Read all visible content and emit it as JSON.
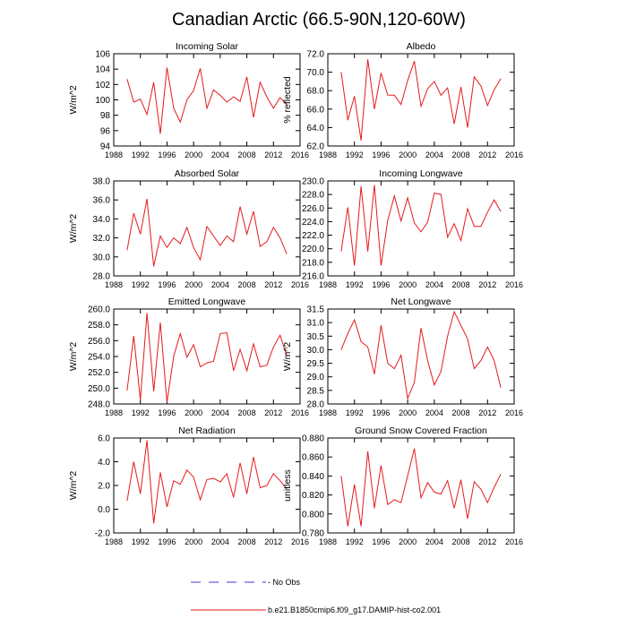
{
  "title": "Canadian Arctic (66.5-90N,120-60W)",
  "colors": {
    "model": "#e41a1c",
    "obs": "#3b3bd6",
    "axis": "#000000"
  },
  "legend": [
    {
      "label": "- No Obs",
      "style": "dashed",
      "color": "#3b3bd6"
    },
    {
      "label": "b.e21.B1850cmip6.f09_g17.DAMIP-hist-co2.001",
      "style": "solid",
      "color": "#e41a1c"
    }
  ],
  "chart_data": [
    {
      "type": "line",
      "title": "Incoming Solar",
      "ylabel": "W/m^2",
      "xlim": [
        1988,
        2016
      ],
      "xticks": [
        "1988",
        "1992",
        "1996",
        "2000",
        "2004",
        "2008",
        "2012",
        "2016"
      ],
      "ylim": [
        94,
        106
      ],
      "yticks": [
        "94",
        "96",
        "98",
        "100",
        "102",
        "104",
        "106"
      ],
      "series": [
        {
          "values": [
            [
              1990,
              102.7
            ],
            [
              1991,
              99.7
            ],
            [
              1992,
              100.1
            ],
            [
              1993,
              98.1
            ],
            [
              1994,
              102.3
            ],
            [
              1995,
              95.6
            ],
            [
              1996,
              104.2
            ],
            [
              1997,
              98.9
            ],
            [
              1998,
              97.1
            ],
            [
              1999,
              100.0
            ],
            [
              2000,
              101.2
            ],
            [
              2001,
              104.1
            ],
            [
              2002,
              98.9
            ],
            [
              2003,
              101.3
            ],
            [
              2004,
              100.6
            ],
            [
              2005,
              99.7
            ],
            [
              2006,
              100.4
            ],
            [
              2007,
              99.8
            ],
            [
              2008,
              103.0
            ],
            [
              2009,
              97.7
            ],
            [
              2010,
              102.3
            ],
            [
              2011,
              100.4
            ],
            [
              2012,
              98.9
            ],
            [
              2013,
              100.3
            ],
            [
              2014,
              99.4
            ]
          ]
        }
      ]
    },
    {
      "type": "line",
      "title": "Albedo",
      "ylabel": "% reflected",
      "xlim": [
        1988,
        2016
      ],
      "xticks": [
        "1988",
        "1992",
        "1996",
        "2000",
        "2004",
        "2008",
        "2012",
        "2016"
      ],
      "ylim": [
        62,
        72
      ],
      "yticks": [
        "62.0",
        "64.0",
        "66.0",
        "68.0",
        "70.0",
        "72.0"
      ],
      "series": [
        {
          "values": [
            [
              1990,
              70.0
            ],
            [
              1991,
              64.8
            ],
            [
              1992,
              67.4
            ],
            [
              1993,
              62.6
            ],
            [
              1994,
              71.4
            ],
            [
              1995,
              66.0
            ],
            [
              1996,
              69.9
            ],
            [
              1997,
              67.5
            ],
            [
              1998,
              67.5
            ],
            [
              1999,
              66.5
            ],
            [
              2000,
              69.1
            ],
            [
              2001,
              71.2
            ],
            [
              2002,
              66.3
            ],
            [
              2003,
              68.2
            ],
            [
              2004,
              69.0
            ],
            [
              2005,
              67.5
            ],
            [
              2006,
              68.3
            ],
            [
              2007,
              64.4
            ],
            [
              2008,
              68.4
            ],
            [
              2009,
              64.0
            ],
            [
              2010,
              69.5
            ],
            [
              2011,
              68.5
            ],
            [
              2012,
              66.4
            ],
            [
              2013,
              68.1
            ],
            [
              2014,
              69.3
            ]
          ]
        }
      ]
    },
    {
      "type": "line",
      "title": "Absorbed Solar",
      "ylabel": "W/m^2",
      "xlim": [
        1988,
        2016
      ],
      "xticks": [
        "1988",
        "1992",
        "1996",
        "2000",
        "2004",
        "2008",
        "2012",
        "2016"
      ],
      "ylim": [
        28,
        38
      ],
      "yticks": [
        "28.0",
        "30.0",
        "32.0",
        "34.0",
        "36.0",
        "38.0"
      ],
      "series": [
        {
          "values": [
            [
              1990,
              30.7
            ],
            [
              1991,
              34.6
            ],
            [
              1992,
              32.4
            ],
            [
              1993,
              36.1
            ],
            [
              1994,
              29.0
            ],
            [
              1995,
              32.2
            ],
            [
              1996,
              31.0
            ],
            [
              1997,
              32.0
            ],
            [
              1998,
              31.4
            ],
            [
              1999,
              33.1
            ],
            [
              2000,
              31.0
            ],
            [
              2001,
              29.7
            ],
            [
              2002,
              33.2
            ],
            [
              2003,
              32.2
            ],
            [
              2004,
              31.2
            ],
            [
              2005,
              32.2
            ],
            [
              2006,
              31.6
            ],
            [
              2007,
              35.3
            ],
            [
              2008,
              32.4
            ],
            [
              2009,
              34.8
            ],
            [
              2010,
              31.1
            ],
            [
              2011,
              31.6
            ],
            [
              2012,
              33.1
            ],
            [
              2013,
              32.0
            ],
            [
              2014,
              30.3
            ]
          ]
        }
      ]
    },
    {
      "type": "line",
      "title": "Incoming Longwave",
      "ylabel": "",
      "xlim": [
        1988,
        2016
      ],
      "xticks": [
        "1988",
        "1992",
        "1996",
        "2000",
        "2004",
        "2008",
        "2012",
        "2016"
      ],
      "ylim": [
        216,
        230
      ],
      "yticks": [
        "216.0",
        "218.0",
        "220.0",
        "222.0",
        "224.0",
        "226.0",
        "228.0",
        "230.0"
      ],
      "series": [
        {
          "values": [
            [
              1990,
              219.6
            ],
            [
              1991,
              226.1
            ],
            [
              1992,
              217.5
            ],
            [
              1993,
              229.2
            ],
            [
              1994,
              219.6
            ],
            [
              1995,
              229.4
            ],
            [
              1996,
              217.5
            ],
            [
              1997,
              224.2
            ],
            [
              1998,
              227.8
            ],
            [
              1999,
              224.1
            ],
            [
              2000,
              227.5
            ],
            [
              2001,
              223.8
            ],
            [
              2002,
              222.5
            ],
            [
              2003,
              223.9
            ],
            [
              2004,
              228.2
            ],
            [
              2005,
              228.0
            ],
            [
              2006,
              221.7
            ],
            [
              2007,
              223.7
            ],
            [
              2008,
              221.2
            ],
            [
              2009,
              225.9
            ],
            [
              2010,
              223.3
            ],
            [
              2011,
              223.3
            ],
            [
              2012,
              225.4
            ],
            [
              2013,
              227.2
            ],
            [
              2014,
              225.5
            ]
          ]
        }
      ]
    },
    {
      "type": "line",
      "title": "Emitted Longwave",
      "ylabel": "W/m^2",
      "xlim": [
        1988,
        2016
      ],
      "xticks": [
        "1988",
        "1992",
        "1996",
        "2000",
        "2004",
        "2008",
        "2012",
        "2016"
      ],
      "ylim": [
        248,
        260
      ],
      "yticks": [
        "248.0",
        "250.0",
        "252.0",
        "254.0",
        "256.0",
        "258.0",
        "260.0"
      ],
      "series": [
        {
          "values": [
            [
              1990,
              249.7
            ],
            [
              1991,
              256.6
            ],
            [
              1992,
              248.5
            ],
            [
              1993,
              259.5
            ],
            [
              1994,
              249.6
            ],
            [
              1995,
              258.3
            ],
            [
              1996,
              248.2
            ],
            [
              1997,
              254.0
            ],
            [
              1998,
              256.9
            ],
            [
              1999,
              253.9
            ],
            [
              2000,
              255.5
            ],
            [
              2001,
              252.7
            ],
            [
              2002,
              253.2
            ],
            [
              2003,
              253.4
            ],
            [
              2004,
              256.9
            ],
            [
              2005,
              257.0
            ],
            [
              2006,
              252.2
            ],
            [
              2007,
              254.9
            ],
            [
              2008,
              252.2
            ],
            [
              2009,
              255.6
            ],
            [
              2010,
              252.7
            ],
            [
              2011,
              252.9
            ],
            [
              2012,
              255.2
            ],
            [
              2013,
              256.7
            ],
            [
              2014,
              254.1
            ]
          ]
        }
      ]
    },
    {
      "type": "line",
      "title": "Net Longwave",
      "ylabel": "W/m^2",
      "xlim": [
        1988,
        2016
      ],
      "xticks": [
        "1988",
        "1992",
        "1996",
        "2000",
        "2004",
        "2008",
        "2012",
        "2016"
      ],
      "ylim": [
        28,
        31.5
      ],
      "yticks": [
        "28.0",
        "28.5",
        "29.0",
        "29.5",
        "30.0",
        "30.5",
        "31.0",
        "31.5"
      ],
      "series": [
        {
          "values": [
            [
              1990,
              30.0
            ],
            [
              1991,
              30.6
            ],
            [
              1992,
              31.1
            ],
            [
              1993,
              30.3
            ],
            [
              1994,
              30.1
            ],
            [
              1995,
              29.1
            ],
            [
              1996,
              30.9
            ],
            [
              1997,
              29.5
            ],
            [
              1998,
              29.3
            ],
            [
              1999,
              29.8
            ],
            [
              2000,
              28.2
            ],
            [
              2001,
              28.8
            ],
            [
              2002,
              30.8
            ],
            [
              2003,
              29.6
            ],
            [
              2004,
              28.7
            ],
            [
              2005,
              29.2
            ],
            [
              2006,
              30.5
            ],
            [
              2007,
              31.4
            ],
            [
              2008,
              30.9
            ],
            [
              2009,
              30.4
            ],
            [
              2010,
              29.3
            ],
            [
              2011,
              29.6
            ],
            [
              2012,
              30.1
            ],
            [
              2013,
              29.6
            ],
            [
              2014,
              28.6
            ]
          ]
        }
      ]
    },
    {
      "type": "line",
      "title": "Net Radiation",
      "ylabel": "W/m^2",
      "xlim": [
        1988,
        2016
      ],
      "xticks": [
        "1988",
        "1992",
        "1996",
        "2000",
        "2004",
        "2008",
        "2012",
        "2016"
      ],
      "ylim": [
        -2,
        6
      ],
      "yticks": [
        "-2.0",
        "0.0",
        "2.0",
        "4.0",
        "6.0"
      ],
      "series": [
        {
          "values": [
            [
              1990,
              0.7
            ],
            [
              1991,
              4.0
            ],
            [
              1992,
              1.3
            ],
            [
              1993,
              5.8
            ],
            [
              1994,
              -1.2
            ],
            [
              1995,
              3.1
            ],
            [
              1996,
              0.2
            ],
            [
              1997,
              2.4
            ],
            [
              1998,
              2.1
            ],
            [
              1999,
              3.3
            ],
            [
              2000,
              2.7
            ],
            [
              2001,
              0.8
            ],
            [
              2002,
              2.5
            ],
            [
              2003,
              2.6
            ],
            [
              2004,
              2.3
            ],
            [
              2005,
              3.0
            ],
            [
              2006,
              1.0
            ],
            [
              2007,
              3.9
            ],
            [
              2008,
              1.3
            ],
            [
              2009,
              4.4
            ],
            [
              2010,
              1.8
            ],
            [
              2011,
              2.0
            ],
            [
              2012,
              3.0
            ],
            [
              2013,
              2.4
            ],
            [
              2014,
              1.7
            ]
          ]
        }
      ]
    },
    {
      "type": "line",
      "title": "Ground Snow Covered Fraction",
      "ylabel": "unitless",
      "xlim": [
        1988,
        2016
      ],
      "xticks": [
        "1988",
        "1992",
        "1996",
        "2000",
        "2004",
        "2008",
        "2012",
        "2016"
      ],
      "ylim": [
        0.78,
        0.88
      ],
      "yticks": [
        "0.780",
        "0.800",
        "0.820",
        "0.840",
        "0.860",
        "0.880"
      ],
      "series": [
        {
          "values": [
            [
              1990,
              0.84
            ],
            [
              1991,
              0.787
            ],
            [
              1992,
              0.831
            ],
            [
              1993,
              0.787
            ],
            [
              1994,
              0.866
            ],
            [
              1995,
              0.806
            ],
            [
              1996,
              0.851
            ],
            [
              1997,
              0.81
            ],
            [
              1998,
              0.815
            ],
            [
              1999,
              0.812
            ],
            [
              2000,
              0.84
            ],
            [
              2001,
              0.869
            ],
            [
              2002,
              0.817
            ],
            [
              2003,
              0.833
            ],
            [
              2004,
              0.823
            ],
            [
              2005,
              0.821
            ],
            [
              2006,
              0.835
            ],
            [
              2007,
              0.806
            ],
            [
              2008,
              0.836
            ],
            [
              2009,
              0.795
            ],
            [
              2010,
              0.834
            ],
            [
              2011,
              0.826
            ],
            [
              2012,
              0.812
            ],
            [
              2013,
              0.828
            ],
            [
              2014,
              0.842
            ]
          ]
        }
      ]
    }
  ]
}
